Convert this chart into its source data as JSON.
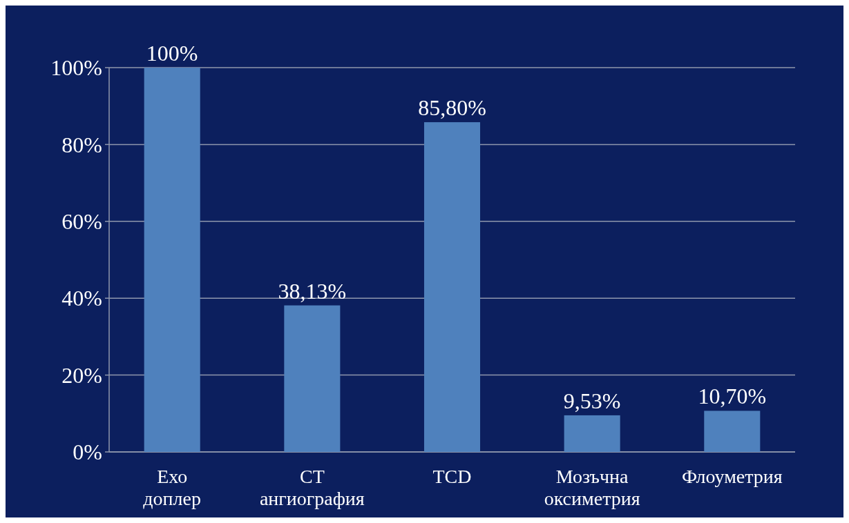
{
  "chart_data": {
    "type": "bar",
    "categories": [
      "Ехо доплер",
      "CT ангиография",
      "TCD",
      "Мозъчна оксиметрия",
      "Флоуметрия"
    ],
    "values": [
      100,
      38.13,
      85.8,
      9.53,
      10.7
    ],
    "value_labels": [
      "100%",
      "38,13%",
      "85,80%",
      "9,53%",
      "10,70%"
    ],
    "color": "#4f81bd",
    "ylim": [
      0,
      100
    ],
    "yticks": [
      {
        "value": 0,
        "label": "0%"
      },
      {
        "value": 20,
        "label": "20%"
      },
      {
        "value": 40,
        "label": "40%"
      },
      {
        "value": 60,
        "label": "60%"
      },
      {
        "value": 80,
        "label": "80%"
      },
      {
        "value": 100,
        "label": "100%"
      }
    ],
    "grid": "y"
  }
}
